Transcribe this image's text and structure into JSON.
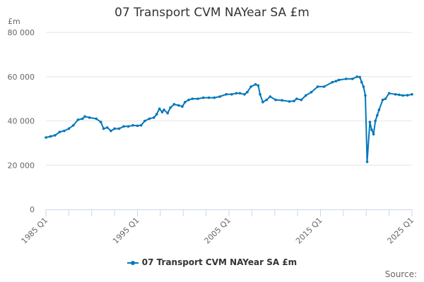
{
  "chart_data": {
    "type": "line",
    "title": "07 Transport CVM NAYear SA £m",
    "ylabel": "£m",
    "xlabel": "",
    "ylim": [
      0,
      80000
    ],
    "xlim": [
      1985,
      2025
    ],
    "yticks": [
      0,
      20000,
      40000,
      60000,
      80000
    ],
    "ytick_labels": [
      "0",
      "20 000",
      "40 000",
      "60 000",
      "80 000"
    ],
    "xticks": [
      1985,
      1995,
      2005,
      2015,
      2025
    ],
    "xtick_labels": [
      "1985 Q1",
      "1995 Q1",
      "2005 Q1",
      "2015 Q1",
      "2025 Q1"
    ],
    "grid": true,
    "legend_position": "bottom-center",
    "color": "#0077bb",
    "series": [
      {
        "name": "07 Transport CVM NAYear SA £m",
        "x": [
          1985,
          1985.5,
          1986,
          1986.5,
          1987,
          1987.5,
          1988,
          1988.5,
          1989,
          1989.25,
          1989.75,
          1990.5,
          1991,
          1991.3,
          1991.7,
          1992.1,
          1992.5,
          1993,
          1993.5,
          1994,
          1994.5,
          1995,
          1995.4,
          1995.8,
          1996.3,
          1996.8,
          1997.1,
          1997.4,
          1997.7,
          1997.9,
          1998.3,
          1998.6,
          1999,
          1999.5,
          1999.9,
          2000.2,
          2000.6,
          2001,
          2001.6,
          2002.2,
          2002.8,
          2003.4,
          2004,
          2004.7,
          2005.3,
          2005.8,
          2006.2,
          2006.7,
          2007,
          2007.4,
          2007.9,
          2008.2,
          2008.4,
          2008.7,
          2009.1,
          2009.5,
          2010.1,
          2010.8,
          2011.6,
          2012.1,
          2012.4,
          2012.9,
          2013.4,
          2014,
          2014.7,
          2015.4,
          2016.3,
          2016.7,
          2017,
          2017.8,
          2018.5,
          2019,
          2019.3,
          2019.5,
          2019.7,
          2019.9,
          2020.1,
          2020.4,
          2020.6,
          2020.8,
          2021,
          2021.2,
          2021.4,
          2021.8,
          2022.1,
          2022.5,
          2023.2,
          2023.6,
          2024,
          2024.5,
          2025
        ],
        "y": [
          32500,
          33000,
          33500,
          35000,
          35500,
          36500,
          38000,
          40500,
          41000,
          42000,
          41500,
          41000,
          39500,
          36500,
          37000,
          35500,
          36500,
          36500,
          37500,
          37500,
          38000,
          37800,
          38000,
          40000,
          41000,
          41500,
          43000,
          45500,
          44000,
          45000,
          43500,
          46000,
          47500,
          47000,
          46500,
          48500,
          49500,
          50000,
          50000,
          50500,
          50500,
          50500,
          51000,
          52000,
          52000,
          52500,
          52500,
          52000,
          53000,
          55500,
          56500,
          56000,
          52000,
          48500,
          49500,
          51000,
          49500,
          49300,
          48800,
          49000,
          50000,
          49500,
          51500,
          53000,
          55500,
          55500,
          57500,
          58000,
          58500,
          59000,
          59000,
          60000,
          59800,
          57500,
          55500,
          51500,
          21500,
          39500,
          36000,
          34000,
          40000,
          42500,
          45000,
          49500,
          50000,
          52500,
          52000,
          51800,
          51500,
          51600,
          52000
        ]
      }
    ]
  },
  "source_label": "Source:"
}
